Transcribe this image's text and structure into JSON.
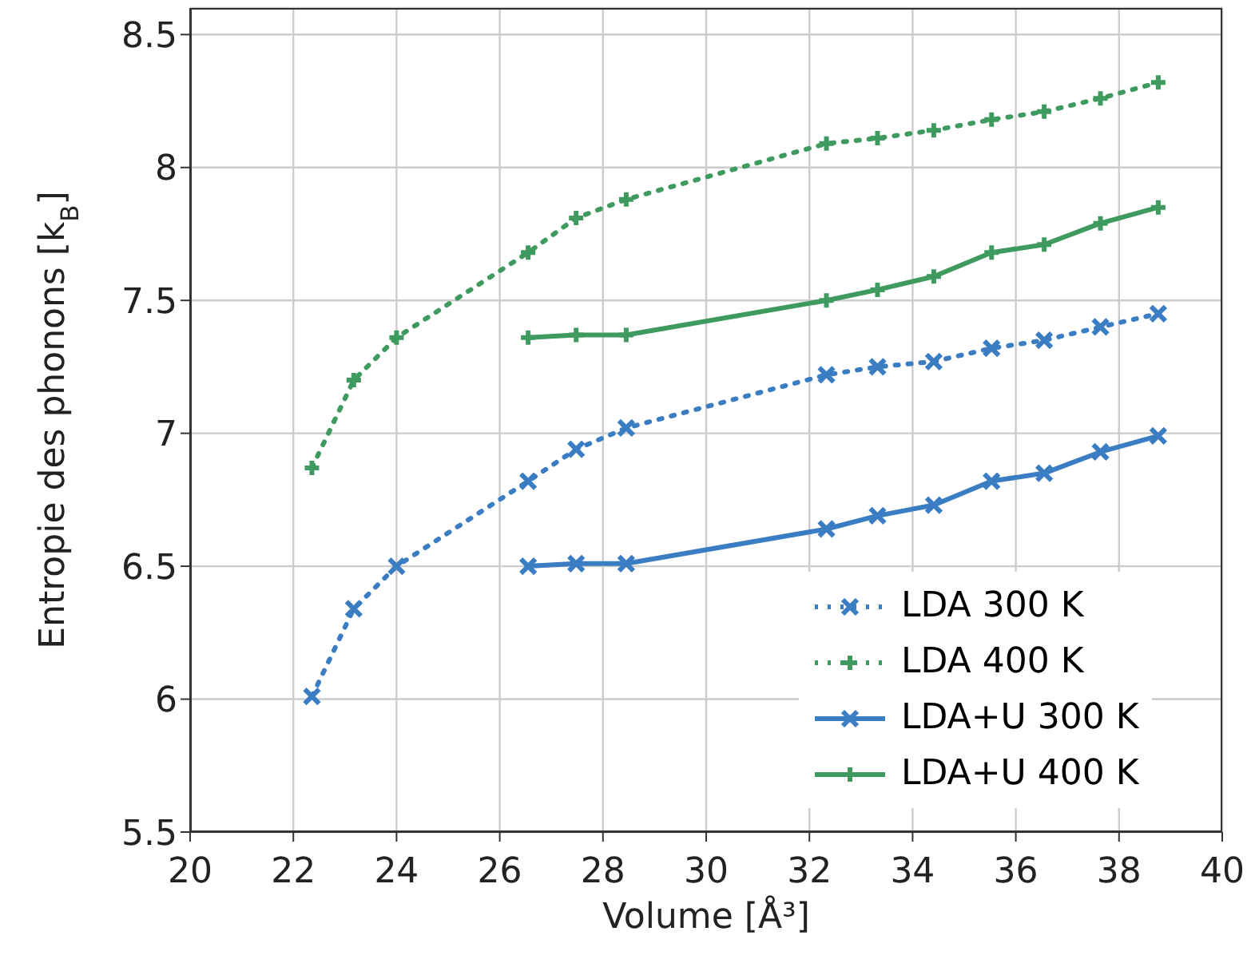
{
  "chart_data": {
    "type": "line",
    "xlabel": "Volume [Å³]",
    "ylabel": "Entropie des phonons [k$_{B}$]",
    "xlim": [
      20,
      40
    ],
    "ylim": [
      5.5,
      8.6
    ],
    "xticks": [
      20,
      22,
      24,
      26,
      28,
      30,
      32,
      34,
      36,
      38,
      40
    ],
    "yticks": [
      5.5,
      6,
      6.5,
      7,
      7.5,
      8,
      8.5
    ],
    "grid": true,
    "legend": "bottom right",
    "series": [
      {
        "name": "LDA 300 K",
        "color": "#3a7dc2",
        "line_style": "dotted",
        "marker": "cross",
        "x": [
          22.36,
          23.17,
          24.0,
          26.55,
          27.48,
          28.45,
          32.33,
          33.32,
          34.41,
          35.53,
          36.55,
          37.64,
          38.76
        ],
        "values": [
          6.01,
          6.34,
          6.5,
          6.82,
          6.94,
          7.02,
          7.22,
          7.25,
          7.27,
          7.32,
          7.35,
          7.4,
          7.45
        ]
      },
      {
        "name": "LDA 400 K",
        "color": "#3f9a5f",
        "line_style": "dotted",
        "marker": "plus",
        "x": [
          22.36,
          23.17,
          24.0,
          26.55,
          27.48,
          28.45,
          32.33,
          33.32,
          34.41,
          35.53,
          36.55,
          37.64,
          38.76
        ],
        "values": [
          6.87,
          7.2,
          7.36,
          7.68,
          7.81,
          7.88,
          8.09,
          8.11,
          8.14,
          8.18,
          8.21,
          8.26,
          8.32
        ]
      },
      {
        "name": "LDA+U 300 K",
        "color": "#3a7dc2",
        "line_style": "solid",
        "marker": "cross",
        "x": [
          26.55,
          27.48,
          28.45,
          32.33,
          33.32,
          34.41,
          35.53,
          36.55,
          37.64,
          38.76
        ],
        "values": [
          6.5,
          6.51,
          6.51,
          6.64,
          6.69,
          6.73,
          6.82,
          6.85,
          6.93,
          6.99
        ]
      },
      {
        "name": "LDA+U 400 K",
        "color": "#3f9a5f",
        "line_style": "solid",
        "marker": "plus",
        "x": [
          26.55,
          27.48,
          28.45,
          32.33,
          33.32,
          34.41,
          35.53,
          36.55,
          37.64,
          38.76
        ],
        "values": [
          7.36,
          7.37,
          7.37,
          7.5,
          7.54,
          7.59,
          7.68,
          7.71,
          7.79,
          7.85
        ]
      }
    ]
  }
}
